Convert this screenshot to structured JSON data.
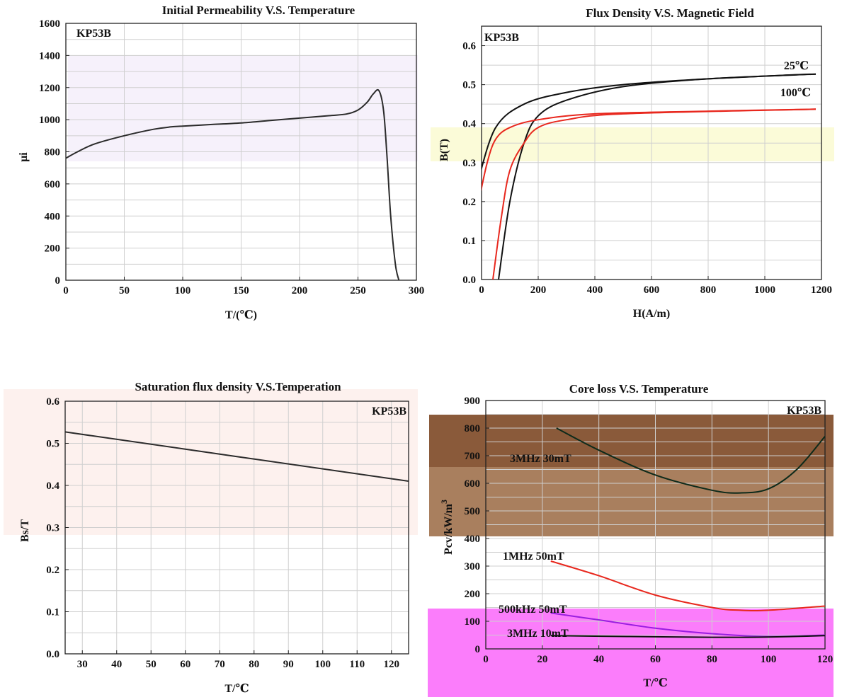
{
  "chart_data": [
    {
      "type": "line",
      "title": "Initial Permeability V.S. Temperature",
      "material": "KP53B",
      "xlabel": "T/(℃)",
      "ylabel": "μi",
      "xlim": [
        0,
        300
      ],
      "ylim": [
        0,
        1600
      ],
      "xticks": [
        "0",
        "50",
        "100",
        "150",
        "200",
        "250",
        "300"
      ],
      "yticks": [
        "0",
        "200",
        "400",
        "600",
        "800",
        "1000",
        "1200",
        "1400",
        "1600"
      ],
      "grid": true,
      "series": [
        {
          "color": "#2b2b2b",
          "x": [
            0,
            10,
            25,
            50,
            75,
            90,
            100,
            125,
            150,
            175,
            200,
            225,
            240,
            250,
            258,
            263,
            268,
            272,
            275,
            278,
            282,
            285
          ],
          "y": [
            760,
            800,
            850,
            900,
            940,
            955,
            960,
            970,
            980,
            995,
            1010,
            1025,
            1035,
            1060,
            1110,
            1160,
            1180,
            1050,
            750,
            400,
            100,
            0
          ]
        }
      ]
    },
    {
      "type": "line",
      "title": "Flux Density V.S. Magnetic Field",
      "material": "KP53B",
      "xlabel": "H(A/m)",
      "ylabel": "B(T)",
      "xlim": [
        0,
        1200
      ],
      "ylim": [
        0,
        0.65
      ],
      "xticks": [
        "0",
        "200",
        "400",
        "600",
        "800",
        "1000",
        "1200"
      ],
      "yticks": [
        "0.0",
        "0.1",
        "0.2",
        "0.3",
        "0.4",
        "0.5",
        "0.6"
      ],
      "grid": true,
      "labels": [
        "25℃",
        "100℃"
      ],
      "series": [
        {
          "label_index": 0,
          "color": "#111111",
          "x": [
            -10,
            50,
            150,
            300,
            500,
            800,
            1100,
            1180
          ],
          "y": [
            0.26,
            0.39,
            0.45,
            0.48,
            0.5,
            0.515,
            0.525,
            0.527
          ]
        },
        {
          "label_index": 0,
          "color": "#111111",
          "x": [
            60,
            100,
            150,
            200,
            300,
            500,
            800,
            1180
          ],
          "y": [
            0.0,
            0.2,
            0.35,
            0.42,
            0.46,
            0.495,
            0.515,
            0.527
          ]
        },
        {
          "label_index": 1,
          "color": "#e8281e",
          "x": [
            -10,
            20,
            50,
            100,
            200,
            400,
            800,
            1180
          ],
          "y": [
            0.2,
            0.3,
            0.36,
            0.39,
            0.41,
            0.425,
            0.432,
            0.437
          ]
        },
        {
          "label_index": 1,
          "color": "#e8281e",
          "x": [
            40,
            70,
            100,
            150,
            200,
            300,
            500,
            1180
          ],
          "y": [
            0.0,
            0.16,
            0.28,
            0.35,
            0.39,
            0.41,
            0.425,
            0.437
          ]
        }
      ]
    },
    {
      "type": "line",
      "title": "Saturation flux density V.S.Temperation",
      "material": "KP53B",
      "xlabel": "T/℃",
      "ylabel": "Bs/T",
      "xlim": [
        25,
        125
      ],
      "ylim": [
        0,
        0.6
      ],
      "xticks": [
        "30",
        "40",
        "50",
        "60",
        "70",
        "80",
        "90",
        "100",
        "110",
        "120"
      ],
      "yticks": [
        "0.0",
        "0.1",
        "0.2",
        "0.3",
        "0.4",
        "0.5",
        "0.6"
      ],
      "grid": true,
      "series": [
        {
          "color": "#2b2b2b",
          "x": [
            25,
            125
          ],
          "y": [
            0.527,
            0.41
          ]
        }
      ]
    },
    {
      "type": "line",
      "title": "Core loss V.S. Temperature",
      "material": "KP53B",
      "xlabel": "T/℃",
      "ylabel": "Pcv/kW/m",
      "ylabel_sup": "3",
      "xlim": [
        0,
        120
      ],
      "ylim": [
        0,
        900
      ],
      "xticks": [
        "0",
        "20",
        "40",
        "60",
        "80",
        "100",
        "120"
      ],
      "yticks": [
        "0",
        "100",
        "200",
        "300",
        "400",
        "500",
        "600",
        "700",
        "800",
        "900"
      ],
      "grid": true,
      "labels": [
        "3MHz 30mT",
        "1MHz 50mT",
        "500kHz 50mT",
        "3MHz 10mT"
      ],
      "series": [
        {
          "label_index": 0,
          "color": "#0d2a1a",
          "x": [
            25,
            40,
            60,
            80,
            90,
            100,
            110,
            120
          ],
          "y": [
            800,
            720,
            630,
            575,
            565,
            580,
            650,
            770
          ]
        },
        {
          "label_index": 1,
          "color": "#e8281e",
          "x": [
            23,
            40,
            60,
            80,
            90,
            100,
            120
          ],
          "y": [
            318,
            265,
            195,
            150,
            140,
            140,
            155
          ]
        },
        {
          "label_index": 2,
          "color": "#9a1ee0",
          "x": [
            23,
            40,
            60,
            80,
            100,
            120
          ],
          "y": [
            130,
            105,
            75,
            55,
            45,
            50
          ]
        },
        {
          "label_index": 3,
          "color": "#111111",
          "x": [
            23,
            50,
            80,
            100,
            120
          ],
          "y": [
            48,
            45,
            42,
            43,
            48
          ]
        }
      ]
    }
  ]
}
